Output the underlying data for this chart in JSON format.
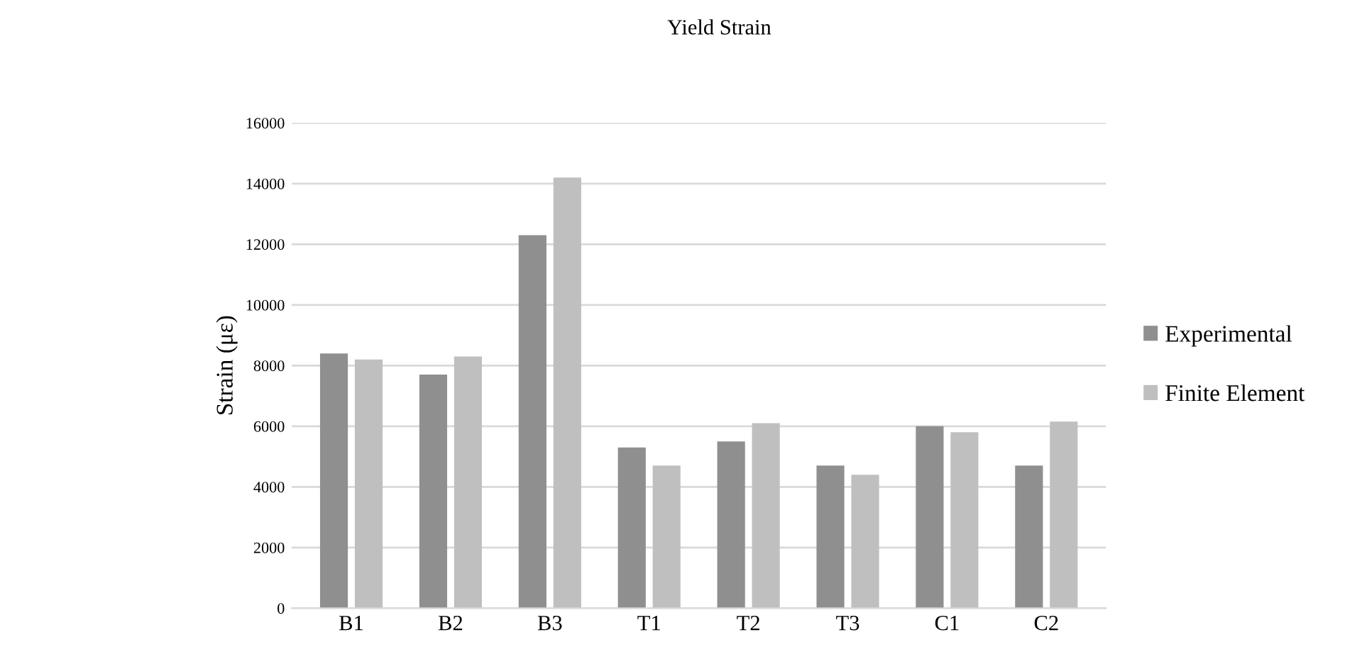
{
  "chart_data": {
    "type": "bar",
    "title": "Yield Strain",
    "ylabel": "Strain (με)",
    "categories": [
      "B1",
      "B2",
      "B3",
      "T1",
      "T2",
      "T3",
      "C1",
      "C2"
    ],
    "series": [
      {
        "name": "Experimental",
        "color": "#8f8f8f",
        "values": [
          8400,
          7700,
          12300,
          5300,
          5500,
          4700,
          6000,
          4700
        ]
      },
      {
        "name": "Finite Element",
        "color": "#bfbfbf",
        "values": [
          8200,
          8300,
          14200,
          4700,
          6100,
          4400,
          5800,
          6150
        ]
      }
    ],
    "ylim": [
      0,
      16000
    ],
    "yticks": [
      0,
      2000,
      4000,
      6000,
      8000,
      10000,
      12000,
      14000,
      16000
    ],
    "grid": "y",
    "legend": "right"
  }
}
